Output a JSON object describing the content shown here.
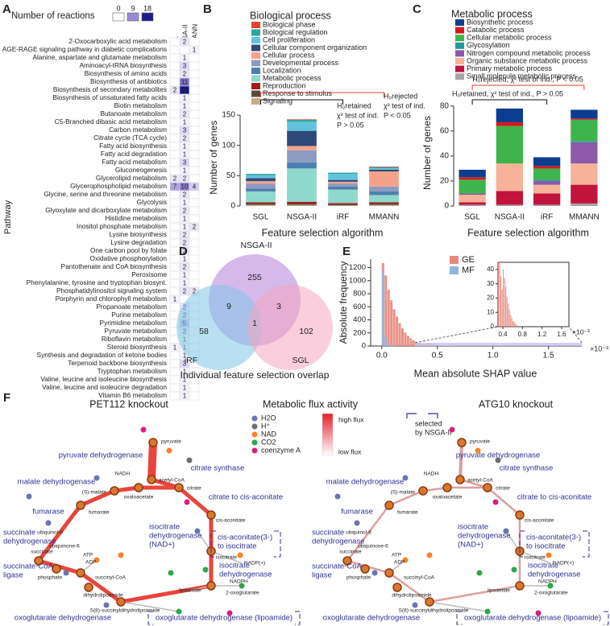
{
  "chart_data": [
    {
      "type": "heatmap",
      "panel": "A",
      "legend_title": "Number of reactions",
      "colorbar_ticks": [
        0,
        9,
        18
      ],
      "colors": [
        "#ffffff",
        "#9a88d8",
        "#1c1c8a"
      ],
      "ylabel": "Pathway",
      "categories": [
        "2-Oxocarboxylic acid metabolism",
        "AGE-RAGE signaling pathway in diabetic complications",
        "Alanine, aspartate and glutamate metabolism",
        "Aminoacyl-tRNA biosynthesis",
        "Biosynthesis of amino acids",
        "Biosynthesis of antibiotics",
        "Biosynthesis of secondary metabolites",
        "Biosynthesis of unsaturated fatty acids",
        "Biotin metabolism",
        "Butanoate metabolism",
        "C5-Branched dibasic acid metabolism",
        "Carbon metabolism",
        "Citrate cycle (TCA cycle)",
        "Fatty acid biosynthesis",
        "Fatty acid degradation",
        "Fatty acid metabolism",
        "Gluconeogenesis",
        "Glycerolipid metabolism",
        "Glycerophospholipid metabolism",
        "Glycine, serine and threonine metabolism",
        "Glycolysis",
        "Glyoxylate and dicarboxylate metabolism",
        "Histidine metabolism",
        "Inositol phosphate metabolism",
        "Lysine biosynthesis",
        "Lysine degradation",
        "One carbon pool by folate",
        "Oxidative phosphorylation",
        "Pantothenate and CoA biosynthesis",
        "Peroxisome",
        "Phenylalanine, tyrosine and tryptophan biosynt.",
        "Phosphatidylinositol signaling system",
        "Porphyrin and chlorophyll metabolism",
        "Propanoate metabolism",
        "Purine metabolism",
        "Pyrimidine metabolism",
        "Pyruvate metabolism",
        "Riboflavin metabolism",
        "Steroid biosynthesis",
        "Synthesis and degradation of ketone bodies",
        "Terpenoid backbone biosynthesis",
        "Tryptophan metabolism",
        "Valine, leucine and isoleucine biosynthesis",
        "Valine, leucine and isoleucine degradation",
        "Vitamin B6 metabolism"
      ],
      "series": [
        {
          "name": "SGL",
          "values": [
            null,
            null,
            null,
            null,
            null,
            null,
            2,
            null,
            null,
            null,
            null,
            null,
            null,
            null,
            null,
            null,
            null,
            2,
            7,
            null,
            null,
            null,
            null,
            null,
            null,
            null,
            null,
            null,
            null,
            null,
            null,
            null,
            1,
            null,
            null,
            null,
            null,
            null,
            1,
            null,
            null,
            null,
            null,
            null,
            null
          ]
        },
        {
          "name": "NSGA-II",
          "values": [
            2,
            null,
            1,
            3,
            2,
            11,
            18,
            1,
            1,
            2,
            1,
            3,
            2,
            1,
            1,
            3,
            1,
            2,
            10,
            2,
            1,
            2,
            1,
            1,
            2,
            2,
            2,
            1,
            2,
            1,
            1,
            2,
            null,
            2,
            2,
            5,
            2,
            1,
            1,
            1,
            3,
            1,
            1,
            1,
            1
          ]
        },
        {
          "name": "MMANN",
          "values": [
            null,
            1,
            null,
            null,
            null,
            null,
            null,
            null,
            null,
            null,
            null,
            null,
            null,
            null,
            null,
            null,
            null,
            null,
            4,
            null,
            null,
            null,
            null,
            2,
            null,
            null,
            null,
            null,
            null,
            null,
            null,
            2,
            null,
            null,
            null,
            null,
            null,
            null,
            null,
            null,
            null,
            null,
            null,
            null,
            null
          ]
        }
      ]
    },
    {
      "type": "stacked_bar",
      "panel": "B",
      "title": "Biological process",
      "xlabel": "Feature selection algorithm",
      "ylabel": "Number of genes",
      "categories": [
        "SGL",
        "NSGA-II",
        "iRF",
        "MMANN"
      ],
      "ylim": [
        0,
        160
      ],
      "yticks": [
        0,
        50,
        100,
        150
      ],
      "annotations": [
        {
          "lines": [
            "H₀retained",
            "χ² test of ind.",
            "P > 0.05"
          ],
          "color": "#111111"
        },
        {
          "lines": [
            "H₀rejected",
            "χ² test of ind.",
            "P < 0.05"
          ],
          "color": "#d2452b"
        }
      ],
      "series": [
        {
          "name": "Biological phase",
          "color": "#e8412c",
          "values": [
            0,
            1,
            0,
            1
          ]
        },
        {
          "name": "Biological regulation",
          "color": "#2aa6a0",
          "values": [
            2,
            3,
            2,
            2
          ]
        },
        {
          "name": "Cell proliferation",
          "color": "#62c3dc",
          "values": [
            5,
            15,
            10,
            2
          ]
        },
        {
          "name": "Cellular component organization",
          "color": "#2f4a7a",
          "values": [
            5,
            25,
            3,
            3
          ]
        },
        {
          "name": "Cellular process",
          "color": "#f6a28a",
          "values": [
            4,
            7,
            3,
            25
          ]
        },
        {
          "name": "Developmental process",
          "color": "#8d9bc0",
          "values": [
            8,
            20,
            5,
            8
          ]
        },
        {
          "name": "Localization",
          "color": "#4e7fb0",
          "values": [
            5,
            10,
            5,
            6
          ]
        },
        {
          "name": "Metabolic process",
          "color": "#8fd8cc",
          "values": [
            18,
            55,
            22,
            12
          ]
        },
        {
          "name": "Reproduction",
          "color": "#a31a1a",
          "values": [
            2,
            3,
            2,
            2
          ]
        },
        {
          "name": "Response to stimulus",
          "color": "#5a4a3a",
          "values": [
            2,
            2,
            2,
            2
          ]
        },
        {
          "name": "Signaling",
          "color": "#c8a98a",
          "values": [
            2,
            2,
            1,
            2
          ]
        }
      ]
    },
    {
      "type": "stacked_bar",
      "panel": "C",
      "title": "Metabolic process",
      "xlabel": "Feature selection algorithm",
      "ylabel": "Number of genes",
      "categories": [
        "SGL",
        "NSGA-II",
        "iRF",
        "MMANN"
      ],
      "ylim": [
        0,
        85
      ],
      "yticks": [
        0,
        20,
        40,
        60,
        80
      ],
      "annotations": [
        {
          "lines": [
            "H₀rejected, χ² test of ind., P < 0.05"
          ],
          "color": "#d2452b"
        },
        {
          "lines": [
            "H₀retained, χ² test of ind., P > 0.05"
          ],
          "color": "#111111"
        }
      ],
      "series": [
        {
          "name": "Biosynthetic process",
          "color": "#0b3d91",
          "values": [
            6,
            11,
            7,
            7
          ]
        },
        {
          "name": "Catabolic process",
          "color": "#d7191c",
          "values": [
            2,
            3,
            2,
            1
          ]
        },
        {
          "name": "Cellular metabolic process",
          "color": "#3db54a",
          "values": [
            11,
            30,
            9,
            17
          ]
        },
        {
          "name": "Glycosylation",
          "color": "#1f9aa0",
          "values": [
            0,
            0,
            1,
            1
          ]
        },
        {
          "name": "Nitrogen compound metabolic process",
          "color": "#8c5aa8",
          "values": [
            1,
            0,
            3,
            17
          ]
        },
        {
          "name": "Organic substance metabolic process",
          "color": "#f7b29a",
          "values": [
            6,
            22,
            7,
            17
          ]
        },
        {
          "name": "Primary metabolic process",
          "color": "#c0143c",
          "values": [
            2,
            11,
            9,
            15
          ]
        },
        {
          "name": "Small molecule metabolic process",
          "color": "#a6a6a6",
          "values": [
            1,
            1,
            1,
            2
          ]
        }
      ]
    },
    {
      "type": "venn",
      "panel": "D",
      "title": "Individual feature selection overlap",
      "sets": [
        {
          "name": "NSGA-II",
          "color": "#b27fd9"
        },
        {
          "name": "iRF",
          "color": "#7fc6e8"
        },
        {
          "name": "SGL",
          "color": "#f6a5c0"
        }
      ],
      "values": [
        255,
        58,
        102,
        9,
        3,
        null,
        1
      ]
    },
    {
      "type": "histogram",
      "panel": "E",
      "xlabel": "Mean absolute SHAP value",
      "ylabel": "Absolute frequency",
      "x_multiplier": "×10⁻³",
      "legend": "top",
      "xlim": [
        -0.1,
        1.8
      ],
      "xticks": [
        {
          "value": 0,
          "label": "0.0"
        },
        0.5,
        {
          "value": 1,
          "label": "1.0"
        },
        1.5
      ],
      "ylim": [
        0,
        1330
      ],
      "yticks": [
        0,
        200,
        400,
        600,
        800,
        1000,
        1200
      ],
      "bins": [
        0,
        0.025,
        0.05,
        0.075,
        0.1,
        0.125,
        0.15,
        0.175,
        0.2,
        0.225,
        0.25,
        0.275,
        0.3,
        0.325,
        0.35,
        0.375,
        0.4,
        0.425,
        0.45,
        0.475,
        0.5,
        0.525,
        0.55,
        0.575,
        0.6,
        0.625,
        0.65,
        0.675,
        0.7
      ],
      "series": [
        {
          "name": "GE",
          "color": "#e8877a",
          "values": [
            1270,
            1080,
            860,
            700,
            560,
            450,
            350,
            270,
            205,
            155,
            118,
            88,
            64,
            47,
            35,
            26,
            40,
            34,
            28,
            21,
            16,
            12,
            8,
            6,
            4,
            3,
            2,
            1
          ]
        },
        {
          "name": "MF",
          "color": "#8fb5dd",
          "values": [
            1150,
            130,
            30,
            10,
            5,
            3,
            2,
            1,
            0,
            0,
            0,
            0,
            0,
            0,
            0,
            0,
            0,
            0,
            0,
            0,
            0,
            0,
            0,
            0,
            0,
            0,
            0,
            0
          ]
        }
      ],
      "inset": {
        "xlim": [
          0.3,
          1.75
        ],
        "xticks": [
          0.4,
          0.8,
          1.2,
          1.6
        ],
        "ylim": [
          0,
          45
        ],
        "yticks": [
          0,
          10,
          20,
          30,
          40
        ]
      }
    }
  ],
  "diagram": {
    "panel": "F",
    "titles": [
      "PET112 knockout",
      "ATG10 knockout"
    ],
    "flux_title": "Metabolic flux activity",
    "flux_high": "high flux",
    "flux_low": "low flux",
    "legend": [
      {
        "name": "H2O",
        "color": "#6b74b0"
      },
      {
        "name": "H⁺",
        "color": "#6e6e6e"
      },
      {
        "name": "NAD",
        "color": "#ff7f2a"
      },
      {
        "name": "CO2",
        "color": "#2aa84a"
      },
      {
        "name": "coenzyme A",
        "color": "#d61f7a"
      }
    ],
    "selected_note": [
      "selected",
      "by NSGA-II"
    ],
    "enzymes": [
      [
        "pyruvate dehydrogenase"
      ],
      [
        "malate dehydrogenase"
      ],
      [
        "citrate synthase"
      ],
      [
        "fumarase"
      ],
      [
        "citrate to cis-aconitate"
      ],
      [
        "succinate",
        "dehydrogenase"
      ],
      [
        "isocitrate",
        "dehydrogenase",
        "(NAD+)"
      ],
      [
        "cis-aconitate(3-)",
        "to isocitrate"
      ],
      [
        "succinate-CoA",
        "ligase"
      ],
      [
        "isocitrate",
        "dehydrogenase"
      ],
      [
        "oxoglutarate dehydrogenase"
      ],
      [
        "oxoglutarate dehydrogenase (lipoamide)"
      ]
    ],
    "metabolites": [
      "pyruvate",
      "NADH",
      "acetyl-CoA",
      "oxaloacetate",
      "(S)-malate",
      "citrate",
      "fumarate",
      "ubiquinol-6",
      "ubiquinone-6",
      "succinate",
      "ATP",
      "ADP",
      "phosphate",
      "succinyl-CoA",
      "cis-aconitate",
      "isocitrate",
      "NADP(+)",
      "NADPH",
      "lipoamide",
      "2-oxoglutarate",
      "dihydrolipoamide",
      "S(8)-succinyldihydrolipoamide"
    ]
  }
}
